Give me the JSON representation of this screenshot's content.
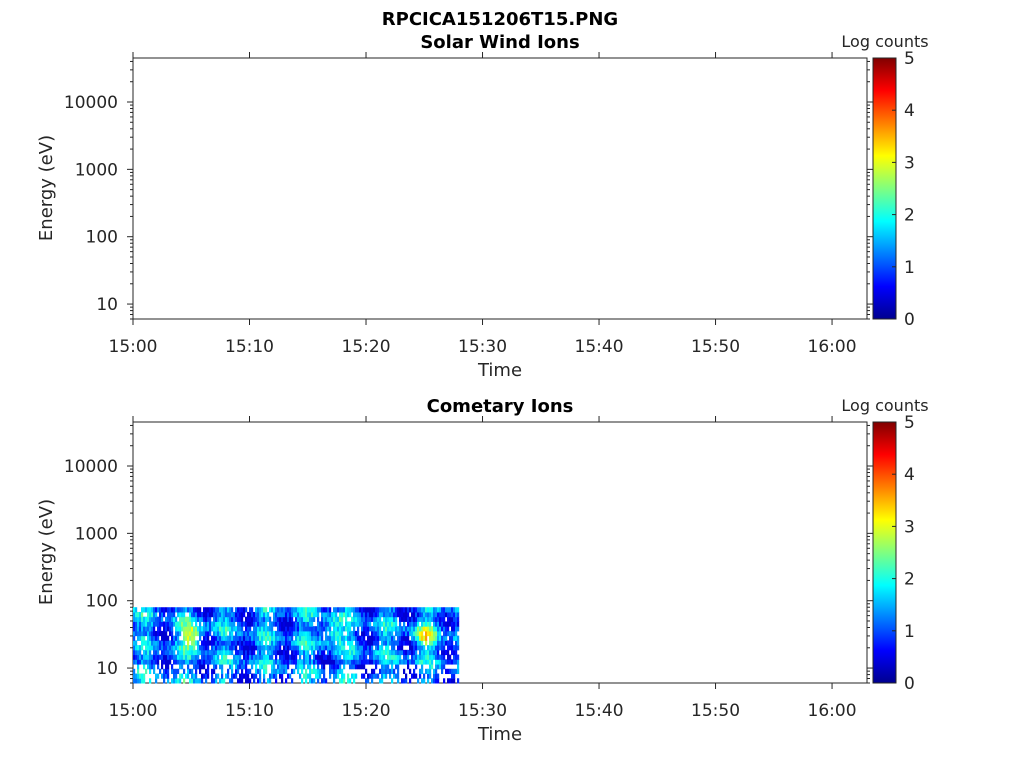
{
  "figure_title": "RPCICA151206T15.PNG",
  "chart_data": [
    {
      "type": "heatmap",
      "title": "Solar Wind Ions",
      "xlabel": "Time",
      "ylabel": "Energy (eV)",
      "x_ticks": [
        "15:00",
        "15:10",
        "15:20",
        "15:30",
        "15:40",
        "15:50",
        "16:00"
      ],
      "xlim": [
        "15:00",
        "16:03"
      ],
      "y_scale": "log",
      "y_ticks": [
        10,
        100,
        1000,
        10000
      ],
      "ylim": [
        6,
        45000
      ],
      "colorbar": {
        "label": "Log counts",
        "ticks": [
          0,
          1,
          2,
          3,
          4,
          5
        ],
        "range": [
          0,
          5
        ],
        "colormap": "jet"
      },
      "data_end": null,
      "bands": []
    },
    {
      "type": "heatmap",
      "title": "Cometary Ions",
      "xlabel": "Time",
      "ylabel": "Energy (eV)",
      "x_ticks": [
        "15:00",
        "15:10",
        "15:20",
        "15:30",
        "15:40",
        "15:50",
        "16:00"
      ],
      "xlim": [
        "15:00",
        "16:03"
      ],
      "y_scale": "log",
      "y_ticks": [
        10,
        100,
        1000,
        10000
      ],
      "ylim": [
        6,
        45000
      ],
      "colorbar": {
        "label": "Log counts",
        "ticks": [
          0,
          1,
          2,
          3,
          4,
          5
        ],
        "range": [
          0,
          5
        ],
        "colormap": "jet"
      },
      "data_end": "15:28",
      "energy_range": [
        6,
        80
      ],
      "hotspots": [
        {
          "time": "15:05",
          "energy": 30,
          "log_counts": 3.2
        },
        {
          "time": "15:17",
          "energy": 35,
          "log_counts": 2.6
        },
        {
          "time": "15:25",
          "energy": 30,
          "log_counts": 3.0
        }
      ]
    }
  ]
}
